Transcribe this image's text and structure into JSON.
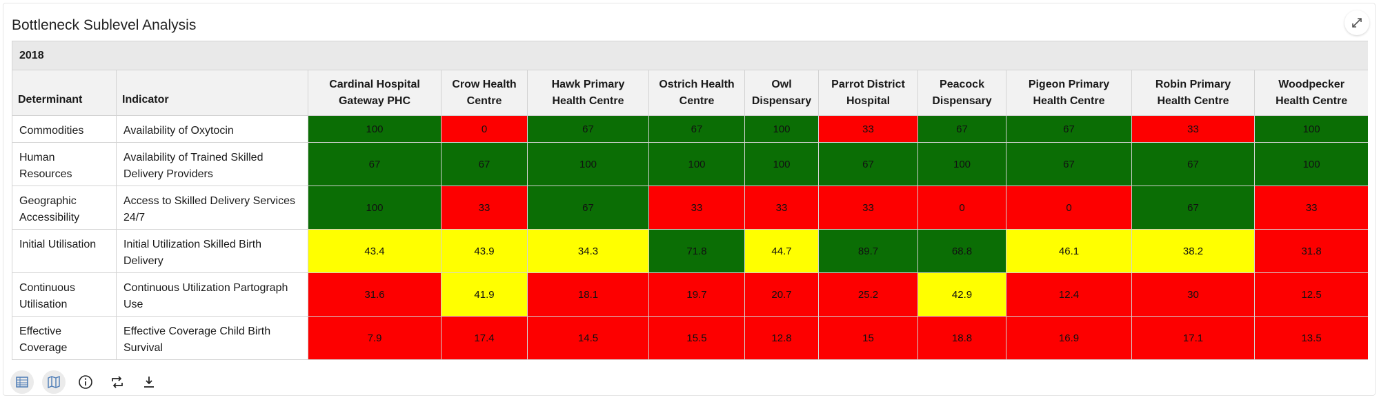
{
  "title": "Bottleneck Sublevel Analysis",
  "year": "2018",
  "headers": {
    "determinant": "Determinant",
    "indicator": "Indicator",
    "facilities": [
      "Cardinal Hospital Gateway PHC",
      "Crow Health Centre",
      "Hawk Primary Health Centre",
      "Ostrich Health Centre",
      "Owl Dispensary",
      "Parrot District Hospital",
      "Peacock Dispensary",
      "Pigeon Primary Health Centre",
      "Robin Primary Health Centre",
      "Woodpecker Health Centre"
    ]
  },
  "colors": {
    "green": "#0b6e05",
    "red": "#fd0000",
    "yellow": "#ffff00"
  },
  "rows": [
    {
      "determinant": "Commodities",
      "indicator": "Availability of Oxytocin",
      "values": [
        "100",
        "0",
        "67",
        "67",
        "100",
        "33",
        "67",
        "67",
        "33",
        "100"
      ],
      "status": [
        "g",
        "r",
        "g",
        "g",
        "g",
        "r",
        "g",
        "g",
        "r",
        "g"
      ]
    },
    {
      "determinant": "Human Resources",
      "indicator": "Availability of Trained Skilled Delivery Providers",
      "values": [
        "67",
        "67",
        "100",
        "100",
        "100",
        "67",
        "100",
        "67",
        "67",
        "100"
      ],
      "status": [
        "g",
        "g",
        "g",
        "g",
        "g",
        "g",
        "g",
        "g",
        "g",
        "g"
      ]
    },
    {
      "determinant": "Geographic Accessibility",
      "indicator": "Access to Skilled Delivery Services 24/7",
      "values": [
        "100",
        "33",
        "67",
        "33",
        "33",
        "33",
        "0",
        "0",
        "67",
        "33"
      ],
      "status": [
        "g",
        "r",
        "g",
        "r",
        "r",
        "r",
        "r",
        "r",
        "g",
        "r"
      ]
    },
    {
      "determinant": "Initial Utilisation",
      "indicator": "Initial Utilization Skilled Birth Delivery",
      "values": [
        "43.4",
        "43.9",
        "34.3",
        "71.8",
        "44.7",
        "89.7",
        "68.8",
        "46.1",
        "38.2",
        "31.8"
      ],
      "status": [
        "y",
        "y",
        "y",
        "g",
        "y",
        "g",
        "g",
        "y",
        "y",
        "r"
      ]
    },
    {
      "determinant": "Continuous Utilisation",
      "indicator": "Continuous Utilization Partograph Use",
      "values": [
        "31.6",
        "41.9",
        "18.1",
        "19.7",
        "20.7",
        "25.2",
        "42.9",
        "12.4",
        "30",
        "12.5"
      ],
      "status": [
        "r",
        "y",
        "r",
        "r",
        "r",
        "r",
        "y",
        "r",
        "r",
        "r"
      ]
    },
    {
      "determinant": "Effective Coverage",
      "indicator": "Effective Coverage Child Birth Survival",
      "values": [
        "7.9",
        "17.4",
        "14.5",
        "15.5",
        "12.8",
        "15",
        "18.8",
        "16.9",
        "17.1",
        "13.5"
      ],
      "status": [
        "r",
        "r",
        "r",
        "r",
        "r",
        "r",
        "r",
        "r",
        "r",
        "r"
      ]
    }
  ],
  "toolbar": [
    {
      "name": "table-view-icon"
    },
    {
      "name": "map-view-icon"
    },
    {
      "name": "info-icon"
    },
    {
      "name": "swap-axes-icon"
    },
    {
      "name": "download-icon"
    }
  ],
  "expand": {
    "name": "expand-icon"
  }
}
